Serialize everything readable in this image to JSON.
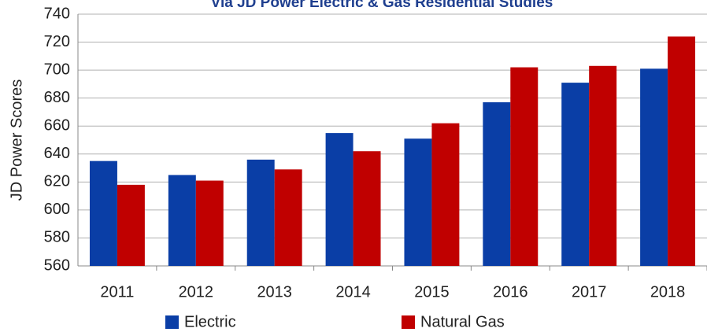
{
  "chart_data": {
    "type": "bar",
    "title": "Via JD Power Electric & Gas Residential Studies",
    "y_label": "JD Power Scores",
    "categories": [
      "2011",
      "2012",
      "2013",
      "2014",
      "2015",
      "2016",
      "2017",
      "2018"
    ],
    "series": [
      {
        "name": "Electric",
        "color": "#0a3ea6",
        "values": [
          635,
          625,
          636,
          655,
          651,
          677,
          691,
          701
        ]
      },
      {
        "name": "Natural Gas",
        "color": "#c00000",
        "values": [
          618,
          621,
          629,
          642,
          662,
          702,
          703,
          724
        ]
      }
    ],
    "ylim": [
      560,
      740
    ],
    "yticks": [
      560,
      580,
      600,
      620,
      640,
      660,
      680,
      700,
      720,
      740
    ],
    "grid": true,
    "legend": "bottom"
  }
}
